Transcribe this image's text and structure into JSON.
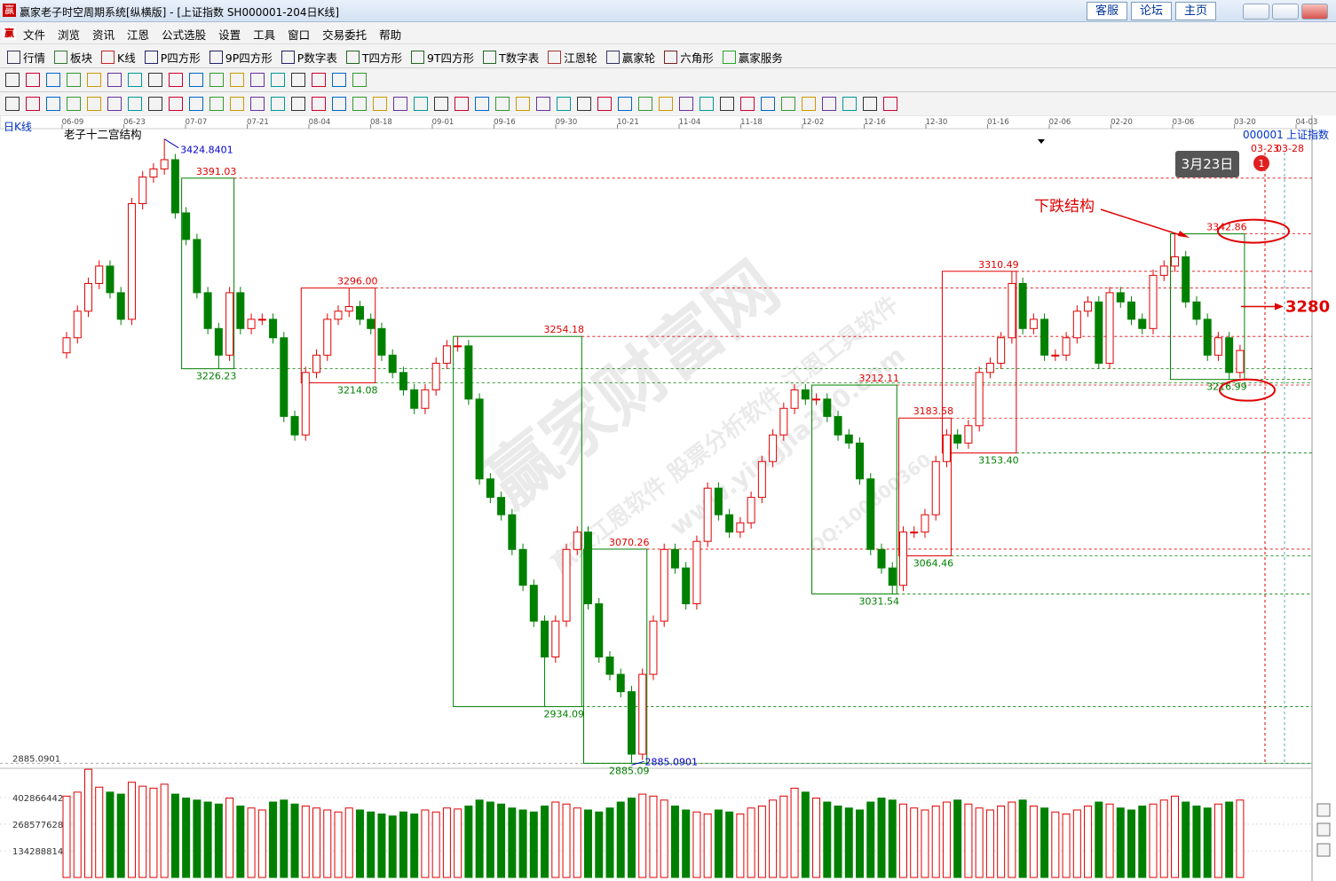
{
  "window": {
    "logo": "赢",
    "title": "赢家老子时空周期系统[纵横版] - [上证指数  SH000001-204日K线]",
    "links": [
      "客服",
      "论坛",
      "主页"
    ]
  },
  "menu": [
    "文件",
    "浏览",
    "资讯",
    "江恩",
    "公式选股",
    "设置",
    "工具",
    "窗口",
    "交易委托",
    "帮助"
  ],
  "toolbar": [
    "行情",
    "板块",
    "K线",
    "P四方形",
    "9P四方形",
    "P数字表",
    "T四方形",
    "9T四方形",
    "T数字表",
    "江恩轮",
    "赢家轮",
    "六角形",
    "赢家服务"
  ],
  "watermark": [
    "赢家财富网",
    "赢家江恩软件 股票分析软件 江恩工具软件",
    "www.yingjia360.com",
    "QQ:100800360"
  ],
  "chart_data": {
    "type": "candlestick",
    "period": "日K线",
    "title": "老子十二宫结构",
    "code": "000001",
    "name": "上证指数",
    "date_ticks": [
      "06-09",
      "06-23",
      "07-07",
      "07-21",
      "08-04",
      "08-18",
      "09-01",
      "09-16",
      "09-30",
      "10-21",
      "11-04",
      "11-18",
      "12-02",
      "12-16",
      "12-30",
      "01-16",
      "02-06",
      "02-20",
      "03-06",
      "03-20",
      "04-03"
    ],
    "open": [
      3240,
      3253,
      3276,
      3300,
      3315,
      3292,
      3269,
      3369,
      3392,
      3399,
      3407,
      3361,
      3338,
      3292,
      3261,
      3238,
      3292,
      3261,
      3269,
      3269,
      3253,
      3185,
      3169,
      3223,
      3238,
      3269,
      3276,
      3280,
      3269,
      3261,
      3238,
      3223,
      3208,
      3192,
      3208,
      3231,
      3246,
      3246,
      3200,
      3131,
      3115,
      3100,
      3070,
      3039,
      3008,
      2977,
      3008,
      3070,
      3085,
      3023,
      2977,
      2962,
      2947,
      2893,
      2962,
      3008,
      3070,
      3054,
      3023,
      3077,
      3123,
      3100,
      3085,
      3093,
      3115,
      3146,
      3169,
      3192,
      3208,
      3200,
      3200,
      3185,
      3169,
      3162,
      3131,
      3070,
      3054,
      3039,
      3085,
      3085,
      3100,
      3146,
      3169,
      3162,
      3177,
      3223,
      3231,
      3253,
      3300,
      3261,
      3269,
      3238,
      3238,
      3253,
      3276,
      3284,
      3231,
      3292,
      3284,
      3269,
      3261,
      3307,
      3315,
      3323,
      3284,
      3269,
      3238,
      3253,
      3223
    ],
    "high": [
      3258,
      3281,
      3305,
      3320,
      3320,
      3297,
      3374,
      3397,
      3404,
      3424.84,
      3412,
      3366,
      3343,
      3297,
      3266,
      3297,
      3297,
      3274,
      3274,
      3274,
      3258,
      3190,
      3228,
      3243,
      3274,
      3281,
      3296,
      3285,
      3274,
      3266,
      3243,
      3228,
      3213,
      3213,
      3236,
      3251,
      3254.18,
      3251,
      3205,
      3136,
      3120,
      3105,
      3075,
      3044,
      3013,
      3013,
      3075,
      3090,
      3090,
      3028,
      2982,
      2967,
      2952,
      2967,
      3013,
      3075,
      3075,
      3059,
      3082,
      3128,
      3128,
      3105,
      3098,
      3120,
      3151,
      3174,
      3197,
      3213,
      3213,
      3205,
      3205,
      3190,
      3174,
      3167,
      3136,
      3075,
      3059,
      3090,
      3090,
      3105,
      3151,
      3174,
      3174,
      3182,
      3228,
      3236,
      3258,
      3310.49,
      3305,
      3274,
      3274,
      3243,
      3258,
      3281,
      3289,
      3289,
      3297,
      3297,
      3289,
      3274,
      3312,
      3320,
      3342.86,
      3328,
      3289,
      3274,
      3258,
      3258,
      3247
    ],
    "low": [
      3235,
      3248,
      3271,
      3295,
      3287,
      3264,
      3264,
      3364,
      3387,
      3394,
      3356,
      3333,
      3287,
      3256,
      3226.23,
      3233,
      3256,
      3256,
      3264,
      3248,
      3180,
      3164,
      3164,
      3218,
      3233,
      3264,
      3271,
      3264,
      3256,
      3233,
      3218,
      3203,
      3187,
      3187,
      3203,
      3226,
      3241,
      3195,
      3126,
      3110,
      3095,
      3065,
      3034,
      3003,
      2934.09,
      2972,
      3003,
      3065,
      3018,
      2972,
      2957,
      2942,
      2885.09,
      2888,
      2957,
      3003,
      3049,
      3018,
      3018,
      3072,
      3095,
      3080,
      3080,
      3088,
      3110,
      3141,
      3164,
      3187,
      3195,
      3195,
      3180,
      3164,
      3157,
      3126,
      3065,
      3049,
      3031.54,
      3034,
      3080,
      3080,
      3095,
      3141,
      3157,
      3157,
      3172,
      3218,
      3226,
      3248,
      3256,
      3256,
      3233,
      3233,
      3233,
      3248,
      3271,
      3226,
      3226,
      3279,
      3264,
      3256,
      3256,
      3302,
      3310,
      3279,
      3264,
      3233,
      3233,
      3216.99,
      3218
    ],
    "close": [
      3253,
      3276,
      3300,
      3315,
      3292,
      3269,
      3369,
      3392,
      3399,
      3407,
      3361,
      3338,
      3292,
      3261,
      3238,
      3292,
      3261,
      3269,
      3269,
      3253,
      3185,
      3169,
      3223,
      3238,
      3269,
      3276,
      3280,
      3269,
      3261,
      3238,
      3223,
      3208,
      3192,
      3208,
      3231,
      3246,
      3246,
      3200,
      3131,
      3115,
      3100,
      3070,
      3039,
      3008,
      2977,
      3008,
      3070,
      3085,
      3023,
      2977,
      2962,
      2947,
      2893,
      2962,
      3008,
      3070,
      3054,
      3023,
      3077,
      3123,
      3100,
      3085,
      3093,
      3115,
      3146,
      3169,
      3192,
      3208,
      3200,
      3200,
      3185,
      3169,
      3162,
      3131,
      3070,
      3054,
      3039,
      3085,
      3085,
      3100,
      3146,
      3169,
      3162,
      3177,
      3223,
      3231,
      3253,
      3300,
      3261,
      3269,
      3238,
      3238,
      3253,
      3276,
      3284,
      3231,
      3292,
      3284,
      3269,
      3261,
      3307,
      3315,
      3323,
      3284,
      3269,
      3238,
      3253,
      3223,
      3242
    ],
    "volume": [
      410000000,
      430000000,
      545000000,
      455000000,
      430000000,
      420000000,
      480000000,
      460000000,
      450000000,
      470000000,
      420000000,
      400000000,
      390000000,
      380000000,
      370000000,
      400000000,
      360000000,
      350000000,
      340000000,
      380000000,
      390000000,
      370000000,
      360000000,
      350000000,
      340000000,
      330000000,
      350000000,
      340000000,
      330000000,
      320000000,
      310000000,
      330000000,
      320000000,
      340000000,
      330000000,
      350000000,
      345000000,
      360000000,
      390000000,
      380000000,
      370000000,
      350000000,
      340000000,
      330000000,
      360000000,
      380000000,
      370000000,
      350000000,
      340000000,
      330000000,
      350000000,
      380000000,
      400000000,
      420000000,
      410000000,
      390000000,
      360000000,
      340000000,
      330000000,
      320000000,
      340000000,
      330000000,
      320000000,
      350000000,
      360000000,
      390000000,
      410000000,
      450000000,
      430000000,
      400000000,
      380000000,
      360000000,
      350000000,
      340000000,
      380000000,
      400000000,
      390000000,
      370000000,
      350000000,
      340000000,
      360000000,
      380000000,
      390000000,
      370000000,
      350000000,
      340000000,
      360000000,
      380000000,
      390000000,
      360000000,
      350000000,
      330000000,
      320000000,
      340000000,
      360000000,
      380000000,
      370000000,
      350000000,
      340000000,
      360000000,
      370000000,
      390000000,
      410000000,
      380000000,
      360000000,
      350000000,
      370000000,
      380000000,
      390000000
    ],
    "ylim": [
      2870,
      3430
    ],
    "yticks": [
      2885.0901
    ],
    "vlim": [
      0,
      550000000
    ],
    "vticks": [
      134288814,
      268577628,
      402866442
    ],
    "up_color": "#e00000",
    "down_color": "#008000",
    "boxes": [
      {
        "high": 3391.03,
        "low": 3226.23,
        "color": "#008000"
      },
      {
        "high": {
          "value": 3296,
          "label": "3296.00"
        },
        "low": 3214.08,
        "color": "#e00000"
      },
      {
        "high": 3254.18,
        "low": 2934.09,
        "color": "#008000"
      },
      {
        "high": 3070.26,
        "low": 2885.09,
        "color": "#008000"
      },
      {
        "high": 3212.11,
        "low": 3031.54,
        "color": "#008000"
      },
      {
        "high": 3183.58,
        "low": 3064.46,
        "color": "#e00000"
      },
      {
        "high": 3310.49,
        "low": {
          "value": 3153.4,
          "label": "3153.40"
        },
        "color": "#e00000"
      },
      {
        "high": 3342.86,
        "low": 3216.99,
        "color": "#008000"
      }
    ],
    "extremes": {
      "high": 3424.8401,
      "low": 2885.0901
    },
    "structure_label": "下跌结构",
    "target": 3280,
    "tooltip": "3月23日",
    "badge": "1",
    "marker_dates": [
      "03-23",
      "03-28"
    ]
  }
}
